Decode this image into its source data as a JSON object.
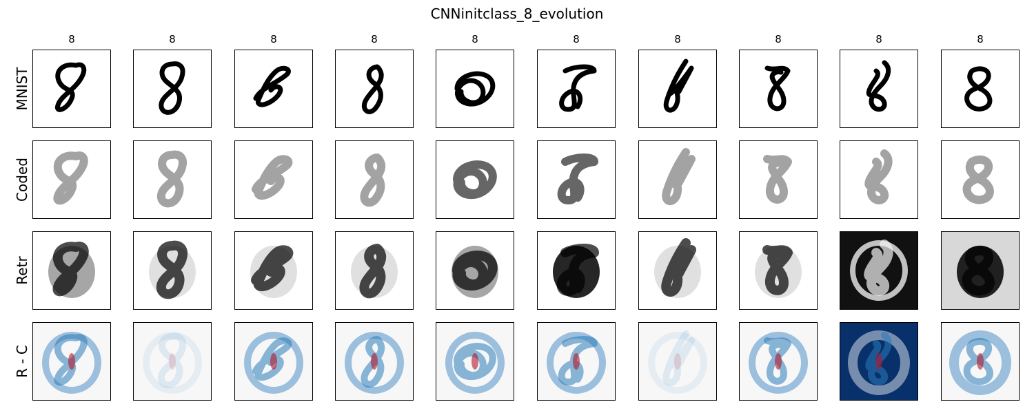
{
  "figure": {
    "title": "CNNinitclass_8_evolution",
    "column_labels": [
      "8",
      "8",
      "8",
      "8",
      "8",
      "8",
      "8",
      "8",
      "8",
      "8"
    ],
    "row_labels": [
      "MNIST",
      "Coded",
      "Retr",
      "R - C"
    ],
    "colormaps": {
      "gray": [
        "#ffffff",
        "#000000"
      ],
      "diverging": [
        "#08306b",
        "#f7f7f7",
        "#b2182b"
      ]
    }
  }
}
